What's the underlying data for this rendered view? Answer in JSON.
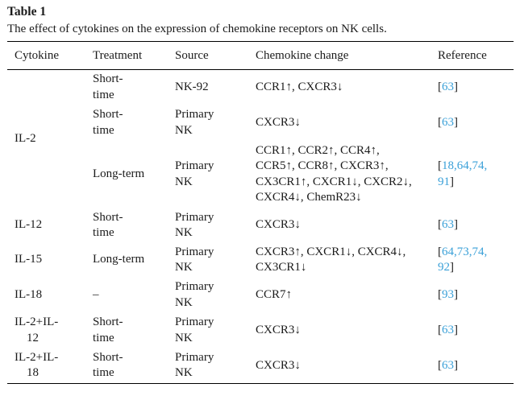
{
  "caption": {
    "title": "Table 1",
    "description": "The effect of cytokines on the expression of chemokine receptors on NK cells."
  },
  "accent_link_color": "#3aa0d8",
  "text_color": "#1b1b1b",
  "table": {
    "columns": [
      "Cytokine",
      "Treatment",
      "Source",
      "Chemokine change",
      "Reference"
    ],
    "rows": [
      {
        "cytokine": "IL-2",
        "treatment": "Short-\ntime",
        "source": "NK-92",
        "change": "CCR1↑, CXCR3↓",
        "ref": {
          "open": "[",
          "links": "63",
          "close": "]"
        }
      },
      {
        "treatment": "Short-\ntime",
        "source": "Primary\nNK",
        "change": "CXCR3↓",
        "ref": {
          "open": "[",
          "links": "63",
          "close": "]"
        }
      },
      {
        "treatment": "Long-term",
        "source": "Primary\nNK",
        "change": "CCR1↑, CCR2↑, CCR4↑,\nCCR5↑, CCR8↑, CXCR3↑,\nCX3CR1↑, CXCR1↓, CXCR2↓,\nCXCR4↓, ChemR23↓",
        "ref": {
          "open": "[",
          "links": "18,64,74,\n91",
          "close": "]"
        }
      },
      {
        "cytokine": "IL-12",
        "treatment": "Short-\ntime",
        "source": "Primary\nNK",
        "change": "CXCR3↓",
        "ref": {
          "open": "[",
          "links": "63",
          "close": "]"
        }
      },
      {
        "cytokine": "IL-15",
        "treatment": "Long-term",
        "source": "Primary\nNK",
        "change": "CXCR3↑, CXCR1↓, CXCR4↓,\nCX3CR1↓",
        "ref": {
          "open": "[",
          "links": "64,73,74,\n92",
          "close": "]"
        }
      },
      {
        "cytokine": "IL-18",
        "treatment": "–",
        "source": "Primary\nNK",
        "change": "CCR7↑",
        "ref": {
          "open": "[",
          "links": "93",
          "close": "]"
        }
      },
      {
        "cytokine": "IL-2+IL-\n    12",
        "treatment": "Short-\ntime",
        "source": "Primary\nNK",
        "change": "CXCR3↓",
        "ref": {
          "open": "[",
          "links": "63",
          "close": "]"
        }
      },
      {
        "cytokine": "IL-2+IL-\n    18",
        "treatment": "Short-\ntime",
        "source": "Primary\nNK",
        "change": "CXCR3↓",
        "ref": {
          "open": "[",
          "links": "63",
          "close": "]"
        }
      }
    ]
  }
}
